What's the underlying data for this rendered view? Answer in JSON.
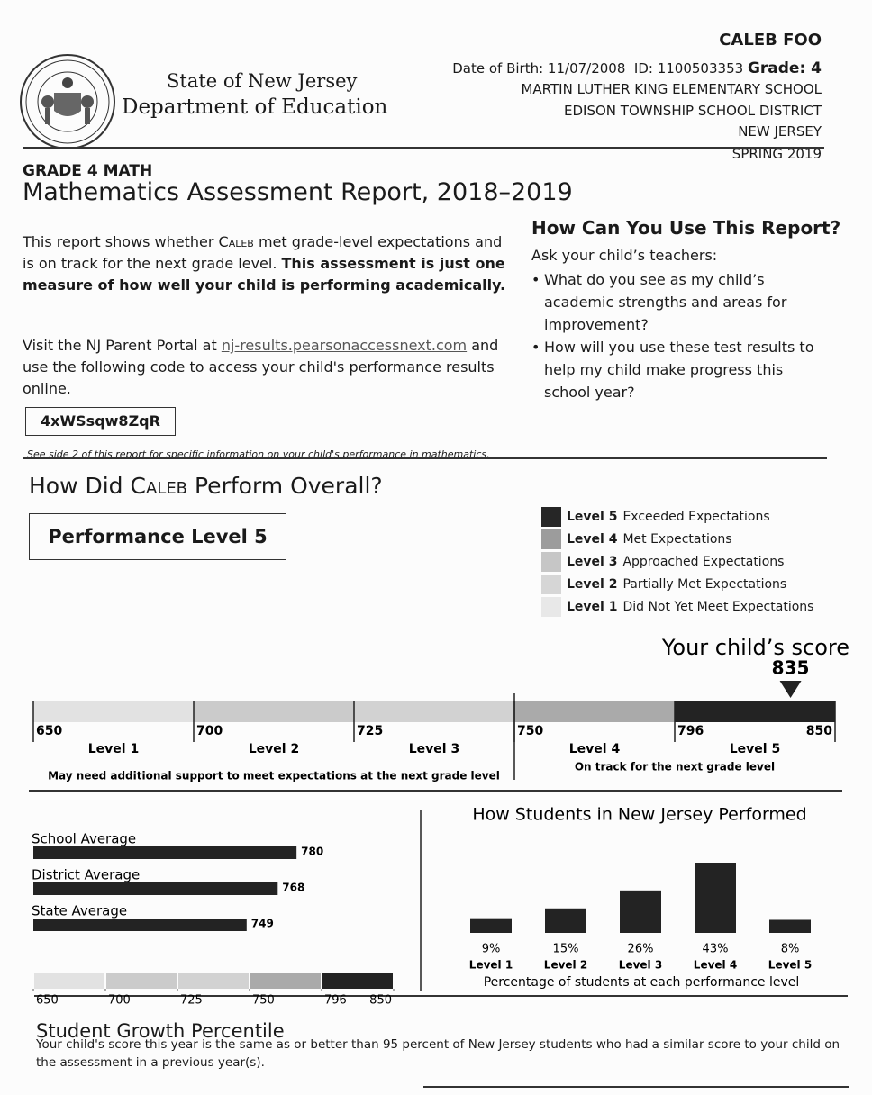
{
  "header": {
    "state": "State of New Jersey",
    "department": "Department of Education",
    "student_name": "CALEB FOO",
    "dob_id": "Date of Birth: 11/07/2008  ID: 1100503353",
    "grade": "Grade: 4",
    "school": "MARTIN LUTHER KING ELEMENTARY SCHOOL",
    "district": "EDISON TOWNSHIP SCHOOL DISTRICT",
    "state_name": "NEW JERSEY",
    "term": "SPRING 2019"
  },
  "report": {
    "subject": "GRADE 4 MATH",
    "title": "Mathematics Assessment Report, 2018–2019",
    "first_name": "Caleb",
    "intro": "This report shows whether",
    "intro_2": "met grade-level expectations and is on track for the next grade level.",
    "intro_bold": "This assessment is just one measure of how well your child is performing academically.",
    "portal": "Visit the NJ Parent Portal at",
    "portal_link": "nj-results.pearsonaccessnext.com",
    "portal_2": "and use the following code to access your child's performance results online.",
    "code": "4xWSsqw8ZqR",
    "side_note": "See side 2 of this report for specific information on your child's performance in mathematics."
  },
  "use_report": {
    "title": "How Can You Use This Report?",
    "intro": "Ask your child’s teachers:",
    "questions": [
      "What do you see as my child’s academic strengths and areas for improvement?",
      "How will you use these test results to help my child make progress this school year?"
    ]
  },
  "overall": {
    "title": "How Did",
    "title_2": "Perform Overall?",
    "level": "Performance Level 5",
    "legend": [
      {
        "level": "Level 5",
        "label": "Exceeded Expectations",
        "color": "#262626"
      },
      {
        "level": "Level 4",
        "label": "Met Expectations",
        "color": "#9c9c9c"
      },
      {
        "level": "Level 3",
        "label": "Approached Expectations",
        "color": "#c6c6c6"
      },
      {
        "level": "Level 2",
        "label": "Partially Met Expectations",
        "color": "#d6d6d6"
      },
      {
        "level": "Level 1",
        "label": "Did Not Yet Meet Expectations",
        "color": "#e8e8e8"
      }
    ]
  },
  "chart_data": [
    {
      "type": "scale",
      "title": "Your child’s score",
      "score": 835,
      "xlim": [
        650,
        850
      ],
      "xticks": [
        650,
        700,
        725,
        750,
        796,
        850
      ],
      "levels": [
        "Level 1",
        "Level 2",
        "Level 3",
        "Level 4",
        "Level 5"
      ],
      "colors": [
        "#e2e2e2",
        "#cbcbcb",
        "#d2d2d2",
        "#aaaaaa",
        "#232323"
      ],
      "notes": [
        "May need additional support to meet expectations at the next grade level",
        "On track for the next grade level"
      ]
    },
    {
      "type": "bar",
      "orientation": "horizontal",
      "categories": [
        "School Average",
        "District Average",
        "State Average"
      ],
      "values": [
        780,
        768,
        749
      ],
      "color": "#232323",
      "xlim": [
        650,
        850
      ],
      "xticks": [
        650,
        700,
        725,
        750,
        796,
        850
      ],
      "scale_colors": [
        "#e2e2e2",
        "#cbcbcb",
        "#d2d2d2",
        "#aaaaaa",
        "#232323"
      ]
    },
    {
      "type": "bar",
      "title": "How Students in New Jersey Performed",
      "categories": [
        "Level 1",
        "Level 2",
        "Level 3",
        "Level 4",
        "Level 5"
      ],
      "values": [
        9,
        15,
        26,
        43,
        8
      ],
      "value_labels": [
        "9%",
        "15%",
        "26%",
        "43%",
        "8%"
      ],
      "x_label": "Percentage of students at each performance level",
      "color": "#232323"
    }
  ],
  "growth": {
    "title": "Student Growth Percentile",
    "text": "Your child's score this year is the same as or better than 95 percent of New Jersey students who had a similar score to your child on the assessment in a previous year(s)."
  }
}
